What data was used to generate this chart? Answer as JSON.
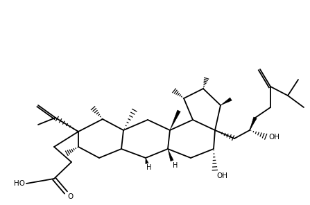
{
  "bg_color": "#ffffff",
  "line_color": "#000000",
  "lw": 1.3,
  "fs": 7.5,
  "figsize": [
    4.47,
    2.96
  ],
  "dpi": 100,
  "xlim": [
    0,
    447
  ],
  "ylim": [
    0,
    296
  ]
}
